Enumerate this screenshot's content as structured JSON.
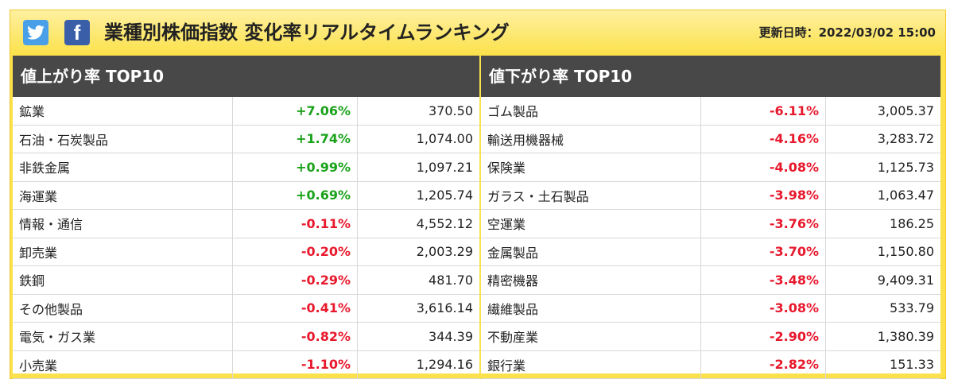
{
  "header": {
    "title": "業種別株価指数 変化率リアルタイムランキング",
    "updated": "更新日時：2022/03/02 15:00",
    "twitter_icon": "twitter-icon",
    "facebook_icon": "facebook-icon",
    "facebook_glyph": "f"
  },
  "rise": {
    "title": "値上がり率 TOP10",
    "rows": [
      {
        "name": "鉱業",
        "rate": "+7.06%",
        "price": "370.50",
        "dir": "pos"
      },
      {
        "name": "石油・石炭製品",
        "rate": "+1.74%",
        "price": "1,074.00",
        "dir": "pos"
      },
      {
        "name": "非鉄金属",
        "rate": "+0.99%",
        "price": "1,097.21",
        "dir": "pos"
      },
      {
        "name": "海運業",
        "rate": "+0.69%",
        "price": "1,205.74",
        "dir": "pos"
      },
      {
        "name": "情報・通信",
        "rate": "-0.11%",
        "price": "4,552.12",
        "dir": "neg"
      },
      {
        "name": "卸売業",
        "rate": "-0.20%",
        "price": "2,003.29",
        "dir": "neg"
      },
      {
        "name": "鉄鋼",
        "rate": "-0.29%",
        "price": "481.70",
        "dir": "neg"
      },
      {
        "name": "その他製品",
        "rate": "-0.41%",
        "price": "3,616.14",
        "dir": "neg"
      },
      {
        "name": "電気・ガス業",
        "rate": "-0.82%",
        "price": "344.39",
        "dir": "neg"
      },
      {
        "name": "小売業",
        "rate": "-1.10%",
        "price": "1,294.16",
        "dir": "neg"
      }
    ]
  },
  "fall": {
    "title": "値下がり率 TOP10",
    "rows": [
      {
        "name": "ゴム製品",
        "rate": "-6.11%",
        "price": "3,005.37",
        "dir": "neg"
      },
      {
        "name": "輸送用機器械",
        "rate": "-4.16%",
        "price": "3,283.72",
        "dir": "neg"
      },
      {
        "name": "保険業",
        "rate": "-4.08%",
        "price": "1,125.73",
        "dir": "neg"
      },
      {
        "name": "ガラス・土石製品",
        "rate": "-3.98%",
        "price": "1,063.47",
        "dir": "neg"
      },
      {
        "name": "空運業",
        "rate": "-3.76%",
        "price": "186.25",
        "dir": "neg"
      },
      {
        "name": "金属製品",
        "rate": "-3.70%",
        "price": "1,150.80",
        "dir": "neg"
      },
      {
        "name": "精密機器",
        "rate": "-3.48%",
        "price": "9,409.31",
        "dir": "neg"
      },
      {
        "name": "繊維製品",
        "rate": "-3.08%",
        "price": "533.79",
        "dir": "neg"
      },
      {
        "name": "不動産業",
        "rate": "-2.90%",
        "price": "1,380.39",
        "dir": "neg"
      },
      {
        "name": "銀行業",
        "rate": "-2.82%",
        "price": "151.33",
        "dir": "neg"
      }
    ]
  },
  "colors": {
    "positive": "#1aa21a",
    "negative": "#e8182c",
    "header_bg": "#fbe14b",
    "panel_head_bg": "#484848"
  }
}
